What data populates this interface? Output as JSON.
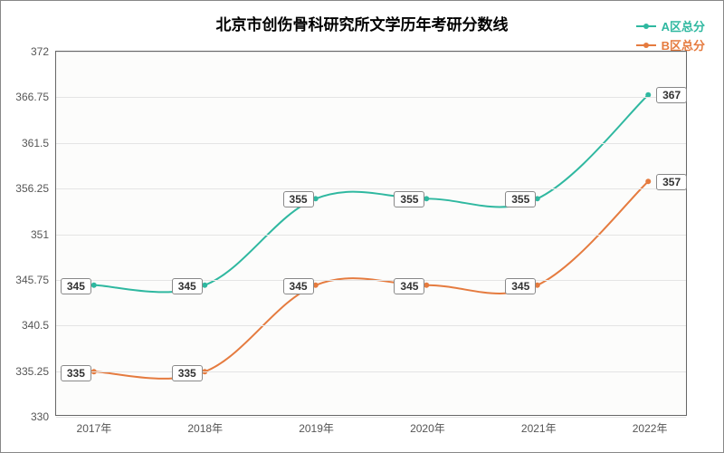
{
  "chart": {
    "type": "line",
    "title": "北京市创伤骨科研究所文学历年考研分数线",
    "title_fontsize": 17,
    "background_color": "#ffffff",
    "border_color": "#888888",
    "plot_background": "#fcfcfb",
    "grid_color": "#e4e4e4",
    "axis_color": "#666666",
    "x": {
      "categories": [
        "2017年",
        "2018年",
        "2019年",
        "2020年",
        "2021年",
        "2022年"
      ],
      "label_fontsize": 12,
      "label_color": "#555555"
    },
    "y": {
      "min": 330,
      "max": 372,
      "ticks": [
        330,
        335.25,
        340.5,
        345.75,
        351,
        356.25,
        361.5,
        366.75,
        372
      ],
      "label_fontsize": 12,
      "label_color": "#555555"
    },
    "series": [
      {
        "name": "A区总分",
        "color": "#2fb8a0",
        "line_width": 2,
        "marker": "circle",
        "marker_size": 6,
        "values": [
          345,
          345,
          355,
          355,
          355,
          367
        ]
      },
      {
        "name": "B区总分",
        "color": "#e57b3f",
        "line_width": 2,
        "marker": "circle",
        "marker_size": 6,
        "values": [
          335,
          335,
          345,
          345,
          345,
          357
        ]
      }
    ],
    "legend": {
      "position": "top-right",
      "fontsize": 13
    },
    "point_label": {
      "fontsize": 12,
      "background": "#ffffff",
      "border_color": "#888888"
    }
  }
}
